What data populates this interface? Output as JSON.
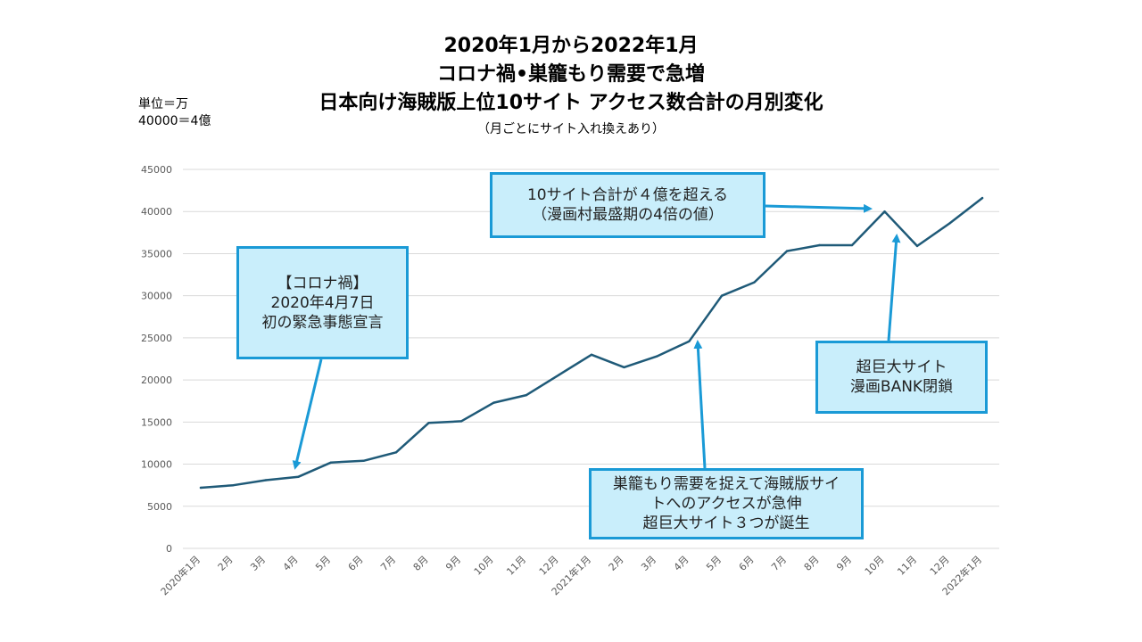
{
  "title_lines": [
    "2020年1月から2022年1月",
    "コロナ禍•巣籠もり需要で急増",
    "日本向け海賊版上位10サイト アクセス数合計の月別変化"
  ],
  "subtitle": "（月ごとにサイト入れ換えあり）",
  "unit_note": {
    "line1": "単位＝万",
    "line2": "40000＝4億"
  },
  "colors": {
    "line": "#1f5a78",
    "grid": "#d9d9d9",
    "arrow": "#1a9ad6",
    "callout_fill": "#c9eefb",
    "callout_border": "#1a9ad6",
    "tick_text": "#595959"
  },
  "chart_data": {
    "type": "line",
    "categories": [
      "2020年1月",
      "2月",
      "3月",
      "4月",
      "5月",
      "6月",
      "7月",
      "8月",
      "9月",
      "10月",
      "11月",
      "12月",
      "2021年1月",
      "2月",
      "3月",
      "4月",
      "5月",
      "6月",
      "7月",
      "8月",
      "9月",
      "10月",
      "11月",
      "12月",
      "2022年1月"
    ],
    "values": [
      7200,
      7500,
      8100,
      8500,
      10200,
      10400,
      11400,
      14900,
      15100,
      17300,
      18200,
      20600,
      23000,
      21500,
      22800,
      24600,
      30000,
      31600,
      35300,
      36000,
      36000,
      40000,
      35900,
      38600,
      41600
    ],
    "ylim": [
      0,
      45000
    ],
    "yticks": [
      0,
      5000,
      10000,
      15000,
      20000,
      25000,
      30000,
      35000,
      40000,
      45000
    ],
    "grid": true,
    "legend": "none"
  },
  "callouts": {
    "covid": [
      "【コロナ禍】",
      "2020年4月7日",
      "初の緊急事態宣言"
    ],
    "ten_site": [
      "10サイト合計が４億を超える",
      "（漫画村最盛期の4倍の値）"
    ],
    "bank": [
      "超巨大サイト",
      "漫画BANK閉鎖"
    ],
    "stayhome": [
      "巣籠もり需要を捉えて海賊版サイ",
      "トへのアクセスが急伸",
      "超巨大サイト３つが誕生"
    ]
  }
}
